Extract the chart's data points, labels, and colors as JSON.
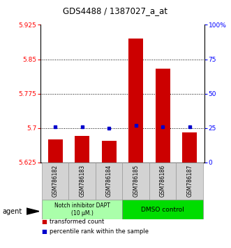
{
  "title": "GDS4488 / 1387027_a_at",
  "samples": [
    "GSM786182",
    "GSM786183",
    "GSM786184",
    "GSM786185",
    "GSM786186",
    "GSM786187"
  ],
  "transformed_counts": [
    5.675,
    5.683,
    5.672,
    5.895,
    5.83,
    5.69
  ],
  "percentile_ranks": [
    26,
    26,
    25,
    27,
    26,
    26
  ],
  "y_min": 5.625,
  "y_max": 5.925,
  "y_ticks_left": [
    5.625,
    5.7,
    5.775,
    5.85,
    5.925
  ],
  "y_ticks_right": [
    0,
    25,
    50,
    75,
    100
  ],
  "bar_color": "#cc0000",
  "dot_color": "#0000cc",
  "group1_label": "Notch inhibitor DAPT\n(10 μM.)",
  "group2_label": "DMSO control",
  "group1_color": "#aaffaa",
  "group2_color": "#00dd00",
  "group1_indices": [
    0,
    1,
    2
  ],
  "group2_indices": [
    3,
    4,
    5
  ],
  "legend_bar_label": "transformed count",
  "legend_dot_label": "percentile rank within the sample",
  "agent_label": "agent"
}
